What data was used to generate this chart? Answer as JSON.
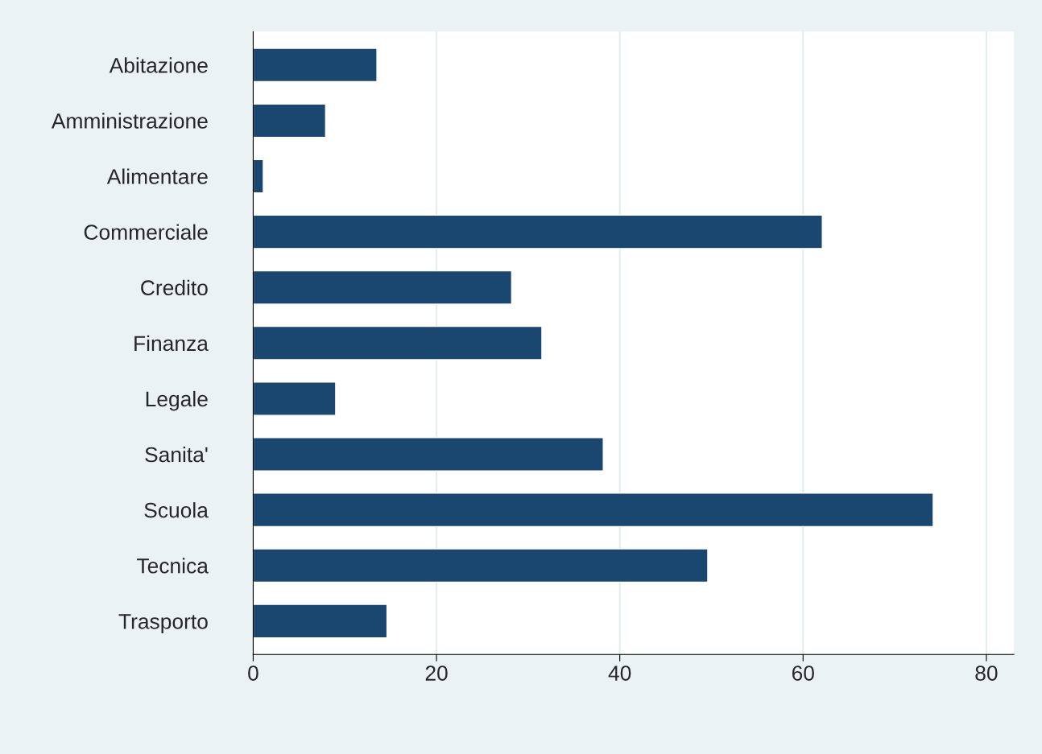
{
  "chart_data": {
    "type": "bar",
    "orientation": "horizontal",
    "categories": [
      "Abitazione",
      "Amministrazione",
      "Alimentare",
      "Commerciale",
      "Credito",
      "Finanza",
      "Legale",
      "Sanita'",
      "Scuola",
      "Tecnica",
      "Trasporto"
    ],
    "values": [
      13.5,
      7.9,
      1.1,
      62.1,
      28.2,
      31.5,
      9.0,
      38.2,
      74.2,
      49.6,
      14.6
    ],
    "color": "#1a476f",
    "xlim": [
      0,
      83
    ],
    "xticks": [
      0,
      20,
      40,
      60,
      80
    ],
    "grid": "x",
    "legend": false
  }
}
